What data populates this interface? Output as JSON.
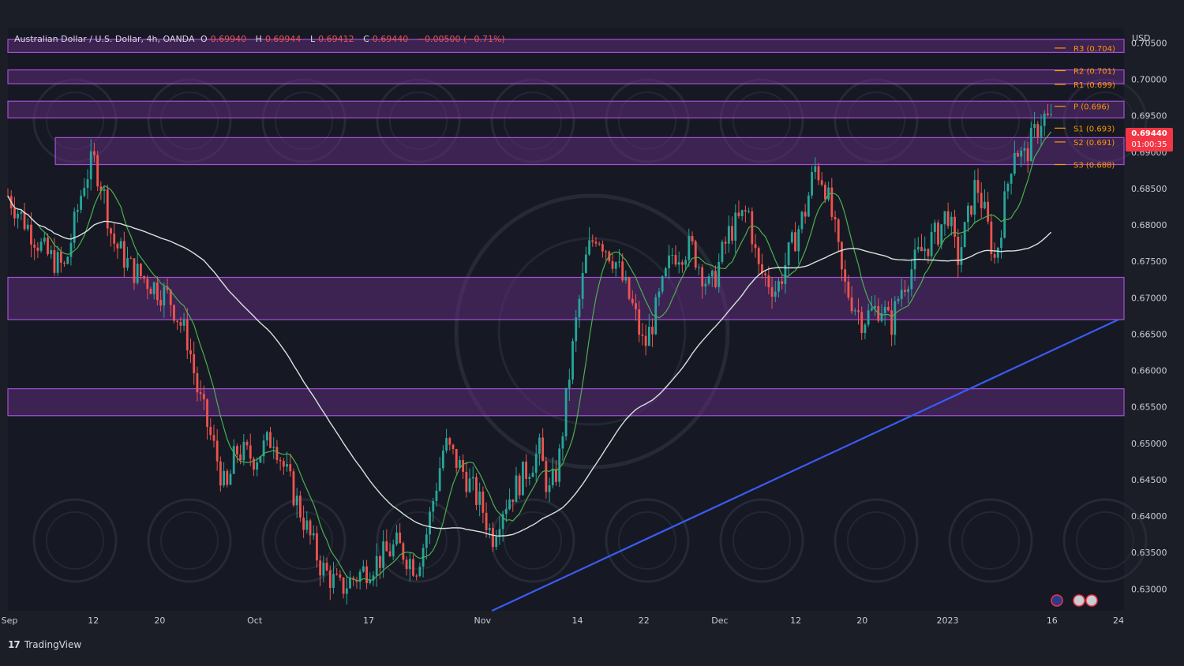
{
  "header": {
    "title": "Australian Dollar / U.S. Dollar, 4h, OANDA",
    "open_label": "O",
    "open": "0.69940",
    "high_label": "H",
    "high": "0.69944",
    "low_label": "L",
    "low": "0.69412",
    "close_label": "C",
    "close": "0.69440",
    "change": "−0.00500 (−0.71%)"
  },
  "currency": "USD",
  "current_price": {
    "value": "0.69440",
    "countdown": "01:00:35"
  },
  "footer": {
    "logo": "17",
    "brand": "TradingView"
  },
  "colors": {
    "background": "#1b1e27",
    "zone_fill": "#5c2b7a",
    "zone_stroke": "#a64fd6",
    "trendline": "#3a5cf5",
    "ma_fast": "#4caf50",
    "ma_slow": "#d6e3dd",
    "up": "#26a69a",
    "down": "#ef5350",
    "pivot": "#ff9800"
  },
  "chart_data": {
    "type": "candlestick",
    "symbol": "Australian Dollar / U.S. Dollar",
    "timeframe": "4h",
    "ylim": [
      0.627,
      0.707
    ],
    "y_ticks": [
      0.705,
      0.7,
      0.695,
      0.69,
      0.685,
      0.68,
      0.675,
      0.67,
      0.665,
      0.66,
      0.655,
      0.65,
      0.645,
      0.64,
      0.635,
      0.63
    ],
    "y_tick_labels": [
      "0.70500",
      "0.70000",
      "0.69500",
      "0.69000",
      "0.68500",
      "0.68000",
      "0.67500",
      "0.67000",
      "0.66500",
      "0.66000",
      "0.65500",
      "0.65000",
      "0.64500",
      "0.64000",
      "0.63500",
      "0.63000"
    ],
    "x_ticks": [
      {
        "label": "Sep",
        "t": 0
      },
      {
        "label": "12",
        "t": 9
      },
      {
        "label": "20",
        "t": 16
      },
      {
        "label": "Oct",
        "t": 26
      },
      {
        "label": "17",
        "t": 38
      },
      {
        "label": "Nov",
        "t": 50
      },
      {
        "label": "14",
        "t": 60
      },
      {
        "label": "22",
        "t": 67
      },
      {
        "label": "Dec",
        "t": 75
      },
      {
        "label": "12",
        "t": 83
      },
      {
        "label": "20",
        "t": 90
      },
      {
        "label": "2023",
        "t": 99
      },
      {
        "label": "16",
        "t": 110
      },
      {
        "label": "24",
        "t": 117
      }
    ],
    "t_range": [
      0,
      117
    ],
    "zones": [
      {
        "from": 0.7037,
        "to": 0.7055,
        "t_start": 0
      },
      {
        "from": 0.6994,
        "to": 0.7013,
        "t_start": 0
      },
      {
        "from": 0.6947,
        "to": 0.697,
        "t_start": 0
      },
      {
        "from": 0.6883,
        "to": 0.692,
        "t_start": 5
      },
      {
        "from": 0.667,
        "to": 0.6728,
        "t_start": 0
      },
      {
        "from": 0.6538,
        "to": 0.6575,
        "t_start": 0
      }
    ],
    "trendline": {
      "t1": 51,
      "y1": 0.627,
      "t2": 117,
      "y2": 0.667
    },
    "pivots": [
      {
        "label": "R3 (0.704)",
        "value": 0.7043
      },
      {
        "label": "R2 (0.701)",
        "value": 0.7012
      },
      {
        "label": "R1 (0.699)",
        "value": 0.6993
      },
      {
        "label": "P (0.696)",
        "value": 0.6963
      },
      {
        "label": "S1 (0.693)",
        "value": 0.6933
      },
      {
        "label": "S2 (0.691)",
        "value": 0.6914
      },
      {
        "label": "S3 (0.688)",
        "value": 0.6883
      }
    ],
    "price_path": [
      [
        0,
        0.684
      ],
      [
        2,
        0.68
      ],
      [
        4,
        0.676
      ],
      [
        6,
        0.674
      ],
      [
        8,
        0.686
      ],
      [
        9,
        0.689
      ],
      [
        10,
        0.685
      ],
      [
        11,
        0.678
      ],
      [
        13,
        0.674
      ],
      [
        15,
        0.672
      ],
      [
        17,
        0.67
      ],
      [
        19,
        0.664
      ],
      [
        20,
        0.657
      ],
      [
        22,
        0.648
      ],
      [
        23,
        0.643
      ],
      [
        24,
        0.649
      ],
      [
        26,
        0.648
      ],
      [
        28,
        0.651
      ],
      [
        29,
        0.647
      ],
      [
        31,
        0.64
      ],
      [
        33,
        0.633
      ],
      [
        35,
        0.63
      ],
      [
        37,
        0.632
      ],
      [
        39,
        0.634
      ],
      [
        41,
        0.636
      ],
      [
        43,
        0.633
      ],
      [
        44,
        0.637
      ],
      [
        46,
        0.65
      ],
      [
        48,
        0.646
      ],
      [
        50,
        0.641
      ],
      [
        51,
        0.637
      ],
      [
        52,
        0.641
      ],
      [
        54,
        0.645
      ],
      [
        56,
        0.649
      ],
      [
        57,
        0.643
      ],
      [
        58,
        0.647
      ],
      [
        59,
        0.658
      ],
      [
        60,
        0.668
      ],
      [
        61,
        0.676
      ],
      [
        62,
        0.679
      ],
      [
        64,
        0.675
      ],
      [
        66,
        0.668
      ],
      [
        67,
        0.663
      ],
      [
        68,
        0.667
      ],
      [
        70,
        0.676
      ],
      [
        72,
        0.677
      ],
      [
        74,
        0.671
      ],
      [
        76,
        0.679
      ],
      [
        78,
        0.682
      ],
      [
        79,
        0.674
      ],
      [
        81,
        0.671
      ],
      [
        82,
        0.675
      ],
      [
        84,
        0.682
      ],
      [
        85,
        0.688
      ],
      [
        86,
        0.686
      ],
      [
        87,
        0.68
      ],
      [
        88,
        0.672
      ],
      [
        90,
        0.667
      ],
      [
        92,
        0.669
      ],
      [
        93,
        0.666
      ],
      [
        94,
        0.671
      ],
      [
        96,
        0.676
      ],
      [
        98,
        0.679
      ],
      [
        99,
        0.682
      ],
      [
        100,
        0.675
      ],
      [
        101,
        0.68
      ],
      [
        102,
        0.686
      ],
      [
        103,
        0.681
      ],
      [
        104,
        0.675
      ],
      [
        105,
        0.683
      ],
      [
        106,
        0.691
      ],
      [
        107,
        0.689
      ],
      [
        108,
        0.692
      ],
      [
        109,
        0.695
      ],
      [
        110,
        0.694
      ]
    ]
  }
}
